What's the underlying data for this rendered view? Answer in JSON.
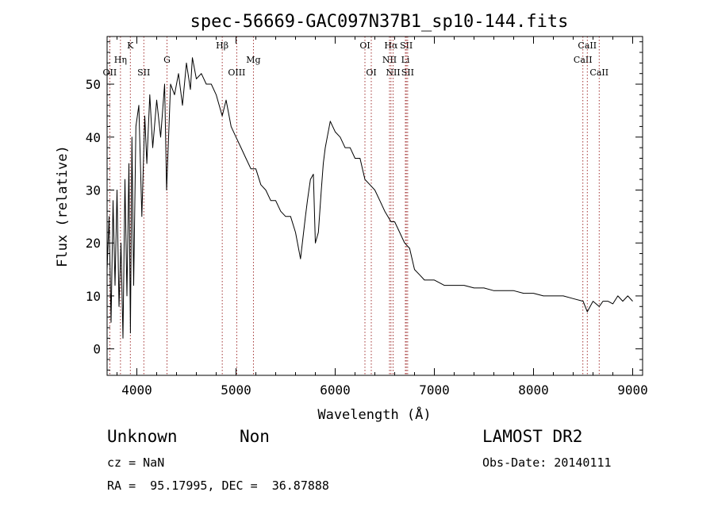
{
  "chart_data": {
    "type": "line",
    "title": "spec-56669-GAC097N37B1_sp10-144.fits",
    "xlabel": "Wavelength (Å)",
    "ylabel": "Flux (relative)",
    "xlim": [
      3700,
      9100
    ],
    "ylim": [
      -5,
      59
    ],
    "xticks": [
      4000,
      5000,
      6000,
      7000,
      8000,
      9000
    ],
    "yticks": [
      0,
      10,
      20,
      30,
      40,
      50
    ],
    "grid": false,
    "series": [
      {
        "x": [
          3700,
          3720,
          3740,
          3760,
          3780,
          3800,
          3820,
          3840,
          3860,
          3880,
          3900,
          3920,
          3935,
          3950,
          3968,
          3990,
          4020,
          4050,
          4080,
          4101,
          4130,
          4160,
          4200,
          4240,
          4280,
          4300,
          4340,
          4380,
          4420,
          4460,
          4500,
          4540,
          4560,
          4600,
          4650,
          4700,
          4750,
          4800,
          4861,
          4900,
          4950,
          5000,
          5050,
          5100,
          5150,
          5200,
          5250,
          5300,
          5350,
          5400,
          5450,
          5500,
          5550,
          5600,
          5650,
          5700,
          5720,
          5750,
          5780,
          5800,
          5830,
          5860,
          5880,
          5900,
          5920,
          5950,
          6000,
          6050,
          6100,
          6150,
          6200,
          6250,
          6300,
          6350,
          6400,
          6450,
          6500,
          6563,
          6600,
          6650,
          6700,
          6750,
          6800,
          6850,
          6900,
          7000,
          7100,
          7200,
          7300,
          7400,
          7500,
          7600,
          7700,
          7800,
          7900,
          8000,
          8100,
          8200,
          8300,
          8400,
          8500,
          8542,
          8600,
          8662,
          8700,
          8750,
          8800,
          8850,
          8900,
          8950,
          9000
        ],
        "y": [
          15,
          25,
          5,
          28,
          12,
          30,
          8,
          20,
          2,
          32,
          10,
          35,
          3,
          40,
          12,
          42,
          46,
          25,
          44,
          35,
          48,
          38,
          47,
          40,
          50,
          30,
          50,
          48,
          52,
          46,
          54,
          49,
          55,
          51,
          52,
          50,
          50,
          48,
          44,
          47,
          42,
          40,
          38,
          36,
          34,
          34,
          31,
          30,
          28,
          28,
          26,
          25,
          25,
          22,
          17,
          25,
          28,
          32,
          33,
          20,
          22,
          30,
          35,
          38,
          40,
          43,
          41,
          40,
          38,
          38,
          36,
          36,
          32,
          31,
          30,
          28,
          26,
          24,
          24,
          22,
          20,
          19,
          15,
          14,
          13,
          13,
          12,
          12,
          12,
          11.5,
          11.5,
          11,
          11,
          11,
          10.5,
          10.5,
          10,
          10,
          10,
          9.5,
          9,
          7,
          9,
          8,
          9,
          9,
          8.5,
          10,
          9,
          10,
          9
        ]
      }
    ],
    "lines": [
      {
        "label": "OII",
        "x": 3727,
        "row": 3
      },
      {
        "label": "Hη",
        "x": 3835,
        "row": 2
      },
      {
        "label": "K",
        "x": 3934,
        "row": 1
      },
      {
        "label": "SII",
        "x": 4070,
        "row": 3
      },
      {
        "label": "G",
        "x": 4304,
        "row": 2
      },
      {
        "label": "Hβ",
        "x": 4861,
        "row": 1
      },
      {
        "label": "OIII",
        "x": 5007,
        "row": 3
      },
      {
        "label": "Mg",
        "x": 5175,
        "row": 2
      },
      {
        "label": "OI",
        "x": 6300,
        "row": 1
      },
      {
        "label": "OI",
        "x": 6364,
        "row": 3
      },
      {
        "label": "Hα",
        "x": 6563,
        "row": 1
      },
      {
        "label": "NII",
        "x": 6548,
        "row": 2
      },
      {
        "label": "NII",
        "x": 6584,
        "row": 3
      },
      {
        "label": "SII",
        "x": 6717,
        "row": 1
      },
      {
        "label": "Li",
        "x": 6708,
        "row": 2
      },
      {
        "label": "SII",
        "x": 6731,
        "row": 3
      },
      {
        "label": "CaII",
        "x": 8498,
        "row": 2
      },
      {
        "label": "CaII",
        "x": 8542,
        "row": 1
      },
      {
        "label": "CaII",
        "x": 8662,
        "row": 3
      }
    ]
  },
  "info": {
    "class": "Unknown",
    "subclass": "Non",
    "survey": "LAMOST DR2",
    "cz": "cz = NaN",
    "obs_date": "Obs-Date: 20140111",
    "radec": "RA =  95.17995, DEC =  36.87888"
  }
}
